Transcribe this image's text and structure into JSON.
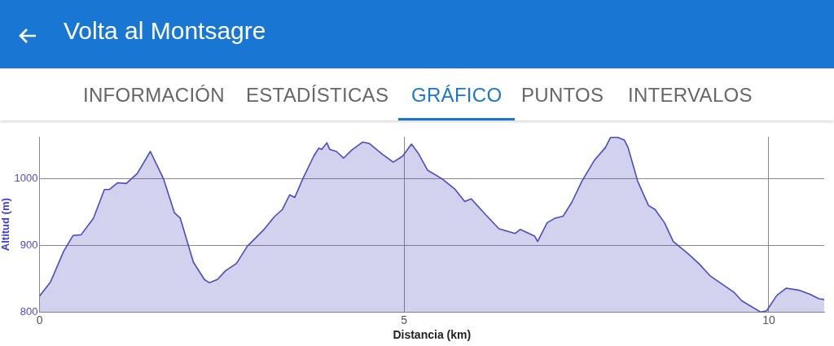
{
  "chart_data": {
    "type": "area",
    "title": "Volta al Montsagre",
    "annotations": [
      "INFORMACIÓN",
      "ESTADÍSTICAS",
      "GRÁFICO",
      "PUNTOS",
      "INTERVALOS"
    ],
    "xlabel": "Distancia (km)",
    "ylabel": "Altitud (m)",
    "xlim": [
      0,
      10.76
    ],
    "xticks": [
      0,
      5,
      10
    ],
    "ylim": [
      800,
      1063
    ],
    "yticks": [
      800,
      900,
      1000
    ],
    "grid": true,
    "series": [
      {
        "color": "#4b4bc0",
        "x": [
          0,
          0.15,
          0.33,
          0.46,
          0.57,
          0.74,
          0.89,
          0.96,
          1.07,
          1.19,
          1.34,
          1.52,
          1.7,
          1.85,
          1.93,
          2.11,
          2.26,
          2.33,
          2.44,
          2.55,
          2.7,
          2.85,
          3.07,
          3.22,
          3.33,
          3.43,
          3.5,
          3.61,
          3.76,
          3.83,
          3.87,
          3.94,
          3.98,
          4.07,
          4.17,
          4.28,
          4.43,
          4.52,
          4.7,
          4.85,
          4.98,
          5.1,
          5.19,
          5.32,
          5.52,
          5.7,
          5.83,
          5.92,
          6.11,
          6.3,
          6.52,
          6.59,
          6.79,
          6.83,
          6.96,
          7.07,
          7.18,
          7.3,
          7.44,
          7.61,
          7.76,
          7.83,
          7.93,
          8.02,
          8.07,
          8.2,
          8.35,
          8.44,
          8.57,
          8.69,
          8.89,
          9.04,
          9.2,
          9.52,
          9.63,
          9.89,
          9.97,
          10.11,
          10.24,
          10.41,
          10.56,
          10.69,
          10.76
        ],
        "values": [
          824,
          845,
          891,
          915,
          916,
          941,
          984,
          984,
          994,
          993,
          1008,
          1041,
          1000,
          949,
          941,
          875,
          849,
          844,
          849,
          862,
          873,
          899,
          923,
          943,
          954,
          976,
          972,
          1000,
          1034,
          1046,
          1044,
          1054,
          1044,
          1041,
          1031,
          1043,
          1055,
          1053,
          1037,
          1025,
          1034,
          1052,
          1039,
          1013,
          1000,
          984,
          966,
          970,
          947,
          925,
          918,
          924,
          914,
          906,
          934,
          941,
          944,
          965,
          997,
          1028,
          1047,
          1062,
          1062,
          1058,
          1047,
          997,
          960,
          954,
          934,
          906,
          888,
          873,
          854,
          830,
          817,
          800,
          802,
          825,
          836,
          833,
          827,
          820,
          819
        ]
      }
    ]
  }
}
